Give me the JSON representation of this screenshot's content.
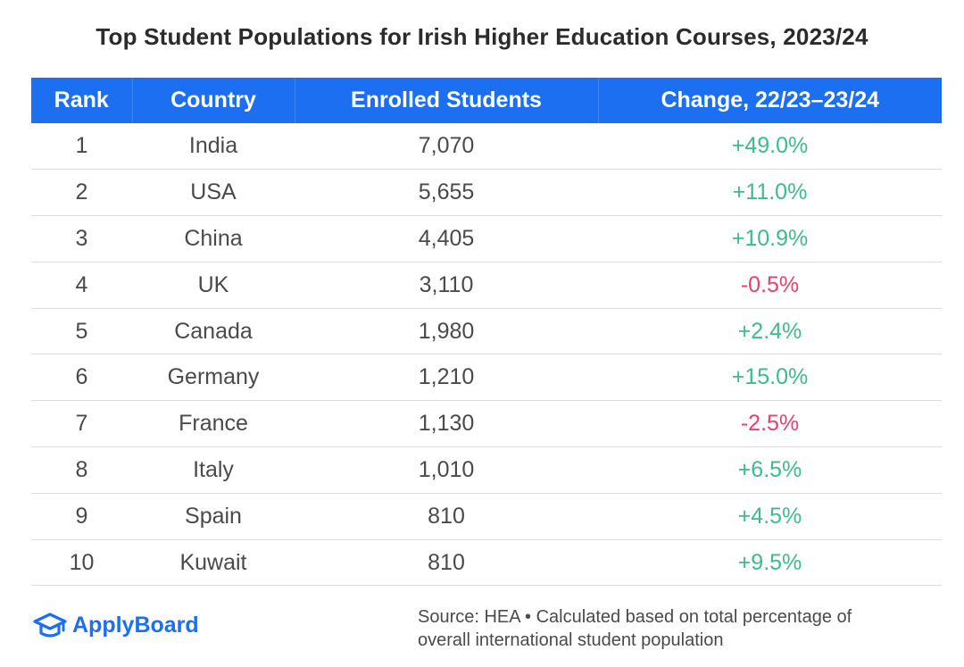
{
  "chart_data": {
    "type": "table",
    "title": "Top Student Populations for Irish Higher Education Courses, 2023/24",
    "columns": [
      "Rank",
      "Country",
      "Enrolled Students",
      "Change, 22/23–23/24"
    ],
    "rows": [
      {
        "rank": "1",
        "country": "India",
        "students": "7,070",
        "change": "+49.0%"
      },
      {
        "rank": "2",
        "country": "USA",
        "students": "5,655",
        "change": "+11.0%"
      },
      {
        "rank": "3",
        "country": "China",
        "students": "4,405",
        "change": "+10.9%"
      },
      {
        "rank": "4",
        "country": "UK",
        "students": "3,110",
        "change": "-0.5%"
      },
      {
        "rank": "5",
        "country": "Canada",
        "students": "1,980",
        "change": "+2.4%"
      },
      {
        "rank": "6",
        "country": "Germany",
        "students": "1,210",
        "change": "+15.0%"
      },
      {
        "rank": "7",
        "country": "France",
        "students": "1,130",
        "change": "-2.5%"
      },
      {
        "rank": "8",
        "country": "Italy",
        "students": "1,010",
        "change": "+6.5%"
      },
      {
        "rank": "9",
        "country": "Spain",
        "students": "810",
        "change": "+4.5%"
      },
      {
        "rank": "10",
        "country": "Kuwait",
        "students": "810",
        "change": "+9.5%"
      }
    ]
  },
  "footer": {
    "brand": "ApplyBoard",
    "source_line1": "Source: HEA • Calculated based on total percentage of",
    "source_line2": "overall international student population"
  },
  "colors": {
    "header_bg": "#1b6ff0",
    "positive": "#3dbb8b",
    "negative": "#e8406f"
  },
  "icons": {
    "logo": "graduation-cap-icon"
  }
}
